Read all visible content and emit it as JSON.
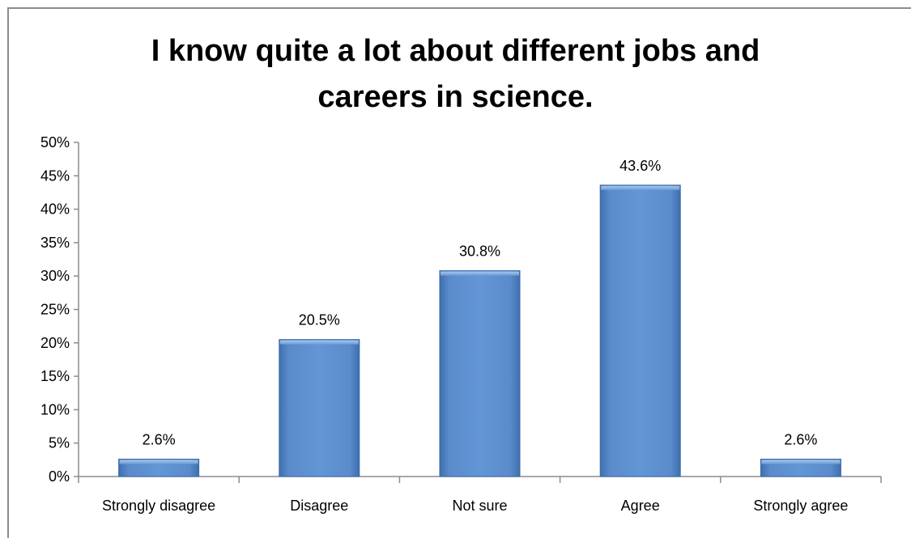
{
  "chart_data": {
    "type": "bar",
    "title_lines": [
      "I know quite a lot about different jobs and",
      "careers in science."
    ],
    "xlabel": "",
    "ylabel": "",
    "categories": [
      "Strongly disagree",
      "Disagree",
      "Not sure",
      "Agree",
      "Strongly agree"
    ],
    "values": [
      2.6,
      20.5,
      30.8,
      43.6,
      2.6
    ],
    "data_labels": [
      "2.6%",
      "20.5%",
      "30.8%",
      "43.6%",
      "2.6%"
    ],
    "ylim": [
      0,
      50
    ],
    "yticks": [
      0,
      5,
      10,
      15,
      20,
      25,
      30,
      35,
      40,
      45,
      50
    ],
    "ytick_labels": [
      "0%",
      "5%",
      "10%",
      "15%",
      "20%",
      "25%",
      "30%",
      "35%",
      "40%",
      "45%",
      "50%"
    ],
    "grid": false,
    "legend": "none",
    "colors": {
      "bar": "#5b8ccc",
      "bar_dark": "#3a6aa8",
      "bar_light": "#8fb3e0",
      "axis": "#8c8c8c"
    }
  }
}
